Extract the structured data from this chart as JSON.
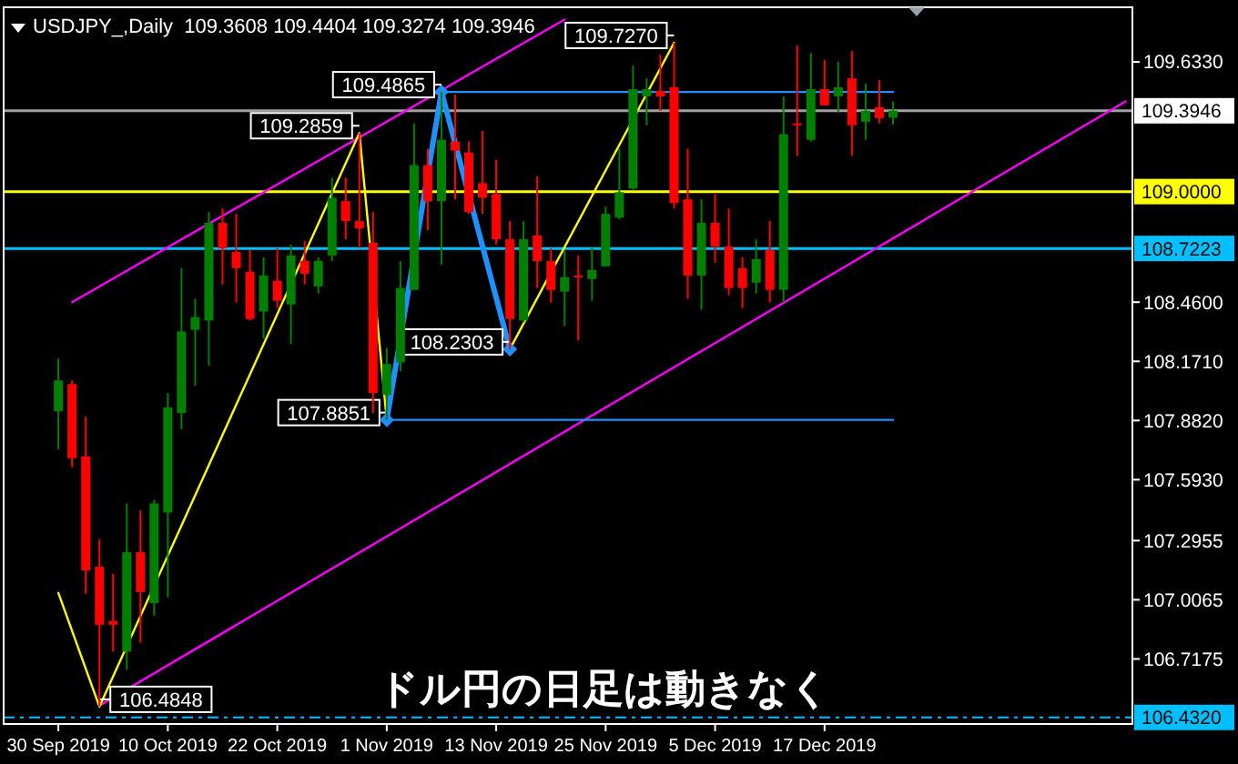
{
  "chart_data": {
    "type": "candlestick",
    "title": "USDJPY_,Daily  109.3608 109.4404 109.3274 109.3946",
    "categories": [
      "30 Sep 2019",
      null,
      null,
      null,
      null,
      null,
      null,
      null,
      "10 Oct 2019",
      null,
      null,
      null,
      null,
      null,
      null,
      null,
      "22 Oct 2019",
      null,
      null,
      null,
      null,
      null,
      null,
      null,
      "1 Nov 2019",
      null,
      null,
      null,
      null,
      null,
      null,
      null,
      "13 Nov 2019",
      null,
      null,
      null,
      null,
      null,
      null,
      null,
      "25 Nov 2019",
      null,
      null,
      null,
      null,
      null,
      null,
      null,
      "5 Dec 2019",
      null,
      null,
      null,
      null,
      null,
      null,
      null,
      "17 Dec 2019",
      null,
      null,
      null,
      null,
      null,
      null,
      null,
      null,
      null,
      null,
      null,
      null,
      null,
      null,
      null,
      null,
      null,
      null,
      null,
      null,
      null,
      null
    ],
    "ohlc": [
      [
        107.928,
        108.184,
        107.742,
        108.078
      ],
      [
        108.06,
        108.078,
        107.654,
        107.698
      ],
      [
        107.707,
        107.901,
        107.036,
        107.15
      ],
      [
        107.168,
        107.301,
        106.485,
        106.885
      ],
      [
        106.903,
        107.133,
        106.753,
        106.885
      ],
      [
        106.753,
        107.477,
        106.664,
        107.239
      ],
      [
        107.239,
        107.442,
        106.797,
        107.044
      ],
      [
        106.991,
        107.495,
        106.929,
        107.477
      ],
      [
        107.433,
        108.016,
        107.018,
        107.946
      ],
      [
        107.919,
        108.626,
        107.84,
        108.317
      ],
      [
        108.325,
        108.476,
        108.052,
        108.387
      ],
      [
        108.37,
        108.9,
        108.149,
        108.847
      ],
      [
        108.847,
        108.917,
        108.546,
        108.723
      ],
      [
        108.705,
        108.891,
        108.458,
        108.626
      ],
      [
        108.608,
        108.714,
        108.37,
        108.378
      ],
      [
        108.414,
        108.679,
        108.281,
        108.59
      ],
      [
        108.564,
        108.723,
        108.431,
        108.467
      ],
      [
        108.449,
        108.741,
        108.255,
        108.688
      ],
      [
        108.661,
        108.758,
        108.546,
        108.599
      ],
      [
        108.537,
        108.679,
        108.502,
        108.661
      ],
      [
        108.688,
        109.068,
        108.661,
        108.97
      ],
      [
        108.953,
        109.068,
        108.767,
        108.856
      ],
      [
        108.856,
        109.2859,
        108.723,
        108.82
      ],
      [
        108.75,
        108.9,
        107.919,
        108.016
      ],
      [
        108.007,
        108.237,
        107.8851,
        108.158
      ],
      [
        108.166,
        108.661,
        108.122,
        108.529
      ],
      [
        108.52,
        109.333,
        108.52,
        109.129
      ],
      [
        109.129,
        109.209,
        108.811,
        108.953
      ],
      [
        108.953,
        109.4865,
        108.643,
        109.253
      ],
      [
        109.244,
        109.474,
        108.962,
        109.2
      ],
      [
        109.191,
        109.244,
        108.891,
        108.9
      ],
      [
        109.041,
        109.297,
        108.891,
        108.97
      ],
      [
        108.988,
        109.156,
        108.741,
        108.767
      ],
      [
        108.767,
        108.856,
        108.2303,
        108.378
      ],
      [
        108.37,
        108.856,
        108.361,
        108.767
      ],
      [
        108.785,
        109.076,
        108.529,
        108.661
      ],
      [
        108.661,
        108.723,
        108.458,
        108.52
      ],
      [
        108.511,
        108.714,
        108.343,
        108.582
      ],
      [
        108.59,
        108.688,
        108.273,
        108.582
      ],
      [
        108.573,
        108.732,
        108.467,
        108.617
      ],
      [
        108.635,
        108.926,
        108.635,
        108.891
      ],
      [
        108.873,
        109.209,
        108.864,
        108.997
      ],
      [
        109.015,
        109.615,
        109.006,
        109.5
      ],
      [
        109.465,
        109.553,
        109.324,
        109.5
      ],
      [
        109.492,
        109.668,
        109.394,
        109.465
      ],
      [
        109.509,
        109.727,
        108.917,
        108.944
      ],
      [
        108.962,
        109.209,
        108.476,
        108.59
      ],
      [
        108.59,
        108.962,
        108.423,
        108.847
      ],
      [
        108.847,
        108.988,
        108.652,
        108.732
      ],
      [
        108.732,
        108.917,
        108.493,
        108.529
      ],
      [
        108.626,
        108.679,
        108.431,
        108.529
      ],
      [
        108.555,
        108.767,
        108.502,
        108.67
      ],
      [
        108.714,
        108.856,
        108.458,
        108.52
      ],
      [
        108.52,
        109.465,
        108.458,
        109.28
      ],
      [
        109.333,
        109.713,
        109.174,
        109.324
      ],
      [
        109.253,
        109.677,
        109.244,
        109.5
      ],
      [
        109.5,
        109.642,
        109.421,
        109.421
      ],
      [
        109.465,
        109.633,
        109.386,
        109.509
      ],
      [
        109.553,
        109.686,
        109.174,
        109.324
      ],
      [
        109.341,
        109.527,
        109.253,
        109.394
      ],
      [
        109.412,
        109.545,
        109.333,
        109.359
      ],
      [
        109.3608,
        109.4404,
        109.3274,
        109.3946
      ],
      null,
      null,
      null,
      null,
      null,
      null,
      null,
      null,
      null,
      null,
      null,
      null,
      null,
      null,
      null,
      null,
      null
    ],
    "series": [
      {
        "type": "line",
        "color": "#ff00ff",
        "values": [
          null,
          108.46,
          null,
          null,
          null,
          null,
          null,
          null,
          null,
          null,
          null,
          null,
          null,
          null,
          null,
          null,
          null,
          null,
          null,
          null,
          null,
          null,
          null,
          null,
          null,
          null,
          null,
          null,
          null,
          null,
          null,
          null,
          null,
          null,
          null,
          null,
          null,
          109.84,
          null,
          null,
          null,
          null,
          null,
          null,
          null,
          null,
          null,
          null,
          null,
          null,
          null,
          null,
          null,
          null,
          null,
          null,
          null,
          null,
          null,
          null,
          null,
          null,
          null,
          null,
          null,
          null,
          null,
          null,
          null,
          null,
          null,
          null,
          null,
          null,
          null,
          null,
          null,
          null,
          null
        ]
      },
      {
        "type": "line",
        "color": "#ff00ff",
        "values": [
          null,
          null,
          null,
          106.49,
          null,
          null,
          null,
          null,
          null,
          null,
          null,
          null,
          null,
          null,
          null,
          null,
          null,
          null,
          null,
          null,
          null,
          null,
          null,
          null,
          null,
          null,
          null,
          null,
          null,
          null,
          null,
          null,
          null,
          null,
          null,
          null,
          null,
          null,
          null,
          null,
          null,
          null,
          null,
          null,
          null,
          null,
          null,
          null,
          null,
          null,
          null,
          null,
          null,
          null,
          null,
          null,
          null,
          null,
          null,
          null,
          null,
          null,
          null,
          null,
          null,
          null,
          null,
          null,
          null,
          null,
          null,
          null,
          null,
          null,
          null,
          null,
          null,
          null,
          109.44
        ]
      },
      {
        "type": "line",
        "color": "#ffff00",
        "values": [
          107.04,
          null,
          null,
          106.4848,
          null,
          null,
          null,
          null,
          null,
          null,
          null,
          null,
          null,
          null,
          null,
          null,
          null,
          null,
          null,
          null,
          null,
          null,
          109.2859,
          null,
          107.8851,
          null,
          null,
          null,
          null,
          null,
          null,
          null,
          null,
          null,
          null,
          null,
          null,
          null,
          null,
          null,
          null,
          null,
          null,
          null,
          null,
          null,
          null,
          null,
          null,
          null,
          null,
          null,
          null,
          null,
          null,
          null,
          null,
          null,
          null,
          null,
          null,
          null,
          null,
          null,
          null,
          null,
          null,
          null,
          null,
          null,
          null,
          null,
          null,
          null,
          null,
          null,
          null,
          null,
          null
        ],
        "value_labels": [
          null,
          null,
          null,
          "106.4848",
          null,
          null,
          null,
          null,
          null,
          null,
          null,
          null,
          null,
          null,
          null,
          null,
          null,
          null,
          null,
          null,
          null,
          null,
          "109.2859",
          null,
          "107.8851",
          null,
          null,
          null,
          null,
          null,
          null,
          null,
          null,
          null,
          null,
          null,
          null,
          null,
          null,
          null,
          null,
          null,
          null,
          null,
          null,
          null,
          null,
          null,
          null,
          null,
          null,
          null,
          null,
          null,
          null,
          null,
          null,
          null,
          null,
          null,
          null,
          null,
          null,
          null,
          null,
          null,
          null,
          null,
          null,
          null,
          null,
          null,
          null,
          null,
          null,
          null,
          null,
          null,
          null
        ]
      },
      {
        "type": "line",
        "color": "#ffff00",
        "values": [
          null,
          null,
          null,
          null,
          null,
          null,
          null,
          null,
          null,
          null,
          null,
          null,
          null,
          null,
          null,
          null,
          null,
          null,
          null,
          null,
          null,
          null,
          null,
          null,
          null,
          null,
          null,
          null,
          null,
          null,
          null,
          null,
          null,
          108.2303,
          null,
          null,
          null,
          null,
          null,
          null,
          null,
          null,
          null,
          null,
          null,
          109.727,
          null,
          null,
          null,
          null,
          null,
          null,
          null,
          null,
          null,
          null,
          null,
          null,
          null,
          null,
          null,
          null,
          null,
          null,
          null,
          null,
          null,
          null,
          null,
          null,
          null,
          null,
          null,
          null,
          null,
          null,
          null,
          null,
          null
        ],
        "value_labels": [
          null,
          null,
          null,
          null,
          null,
          null,
          null,
          null,
          null,
          null,
          null,
          null,
          null,
          null,
          null,
          null,
          null,
          null,
          null,
          null,
          null,
          null,
          null,
          null,
          null,
          null,
          null,
          null,
          null,
          null,
          null,
          null,
          null,
          null,
          null,
          null,
          null,
          null,
          null,
          null,
          null,
          null,
          null,
          null,
          null,
          "109.7270",
          null,
          null,
          null,
          null,
          null,
          null,
          null,
          null,
          null,
          null,
          null,
          null,
          null,
          null,
          null,
          null,
          null,
          null,
          null,
          null,
          null,
          null,
          null,
          null,
          null,
          null,
          null,
          null,
          null,
          null,
          null,
          null,
          null
        ]
      },
      {
        "type": "line",
        "color": "#1e90ff",
        "marker": "diamond",
        "values": [
          null,
          null,
          null,
          null,
          null,
          null,
          null,
          null,
          null,
          null,
          null,
          null,
          null,
          null,
          null,
          null,
          null,
          null,
          null,
          null,
          null,
          null,
          null,
          null,
          107.8851,
          null,
          null,
          null,
          109.4865,
          null,
          null,
          null,
          null,
          108.2303,
          null,
          null,
          null,
          null,
          null,
          null,
          null,
          null,
          null,
          null,
          null,
          null,
          null,
          null,
          null,
          null,
          null,
          null,
          null,
          null,
          null,
          null,
          null,
          null,
          null,
          null,
          null,
          null,
          null,
          null,
          null,
          null,
          null,
          null,
          null,
          null,
          null,
          null,
          null,
          null,
          null,
          null,
          null,
          null,
          null
        ],
        "value_labels": [
          null,
          null,
          null,
          null,
          null,
          null,
          null,
          null,
          null,
          null,
          null,
          null,
          null,
          null,
          null,
          null,
          null,
          null,
          null,
          null,
          null,
          null,
          null,
          null,
          null,
          null,
          null,
          null,
          "109.4865",
          null,
          null,
          null,
          null,
          "108.2303",
          null,
          null,
          null,
          null,
          null,
          null,
          null,
          null,
          null,
          null,
          null,
          null,
          null,
          null,
          null,
          null,
          null,
          null,
          null,
          null,
          null,
          null,
          null,
          null,
          null,
          null,
          null,
          null,
          null,
          null,
          null,
          null,
          null,
          null,
          null,
          null,
          null,
          null,
          null,
          null,
          null,
          null,
          null,
          null,
          null
        ]
      },
      {
        "type": "line",
        "color": "#1e90ff",
        "values": [
          null,
          null,
          null,
          null,
          null,
          null,
          null,
          null,
          null,
          null,
          null,
          null,
          null,
          null,
          null,
          null,
          null,
          null,
          null,
          null,
          null,
          null,
          null,
          null,
          null,
          null,
          null,
          null,
          109.4865,
          null,
          null,
          null,
          null,
          null,
          null,
          null,
          null,
          null,
          null,
          null,
          null,
          null,
          null,
          null,
          null,
          null,
          null,
          null,
          null,
          null,
          null,
          null,
          null,
          null,
          null,
          null,
          null,
          null,
          null,
          null,
          null,
          109.4865,
          null,
          null,
          null,
          null,
          null,
          null,
          null,
          null,
          null,
          null,
          null,
          null,
          null,
          null,
          null,
          null,
          null
        ]
      },
      {
        "type": "line",
        "color": "#1e90ff",
        "values": [
          null,
          null,
          null,
          null,
          null,
          null,
          null,
          null,
          null,
          null,
          null,
          null,
          null,
          null,
          null,
          null,
          null,
          null,
          null,
          null,
          null,
          null,
          null,
          null,
          107.8851,
          null,
          null,
          null,
          null,
          null,
          null,
          null,
          null,
          null,
          null,
          null,
          null,
          null,
          null,
          null,
          null,
          null,
          null,
          null,
          null,
          null,
          null,
          null,
          null,
          null,
          null,
          null,
          null,
          null,
          null,
          null,
          null,
          null,
          null,
          null,
          null,
          107.8851,
          null,
          null,
          null,
          null,
          null,
          null,
          null,
          null,
          null,
          null,
          null,
          null,
          null,
          null,
          null,
          null,
          null
        ]
      }
    ],
    "ref_lines": [
      {
        "axis": "y",
        "value": 109.3946,
        "label": "109.3946",
        "color": "#a0a0a0"
      },
      {
        "axis": "y",
        "value": 109.0,
        "label": "109.0000",
        "color": "#ffff00"
      },
      {
        "axis": "y",
        "value": 108.7223,
        "label": "108.7223",
        "color": "#00bfff"
      },
      {
        "axis": "y",
        "value": 106.432,
        "label": "106.4320",
        "color": "#00bfff",
        "line_style": "dashed"
      }
    ],
    "annotations": [
      "ドル円の日足は動きなく"
    ],
    "ylim": [
      106.4,
      109.9
    ],
    "yticks": [
      {
        "value": 109.633,
        "label": "109.6330"
      },
      {
        "value": 108.46,
        "label": "108.4600"
      },
      {
        "value": 108.171,
        "label": "108.1710"
      },
      {
        "value": 107.882,
        "label": "107.8820"
      },
      {
        "value": 107.593,
        "label": "107.5930"
      },
      {
        "value": 107.2955,
        "label": "107.2955"
      },
      {
        "value": 107.0065,
        "label": "107.0065"
      },
      {
        "value": 106.7175,
        "label": "106.7175"
      }
    ]
  }
}
